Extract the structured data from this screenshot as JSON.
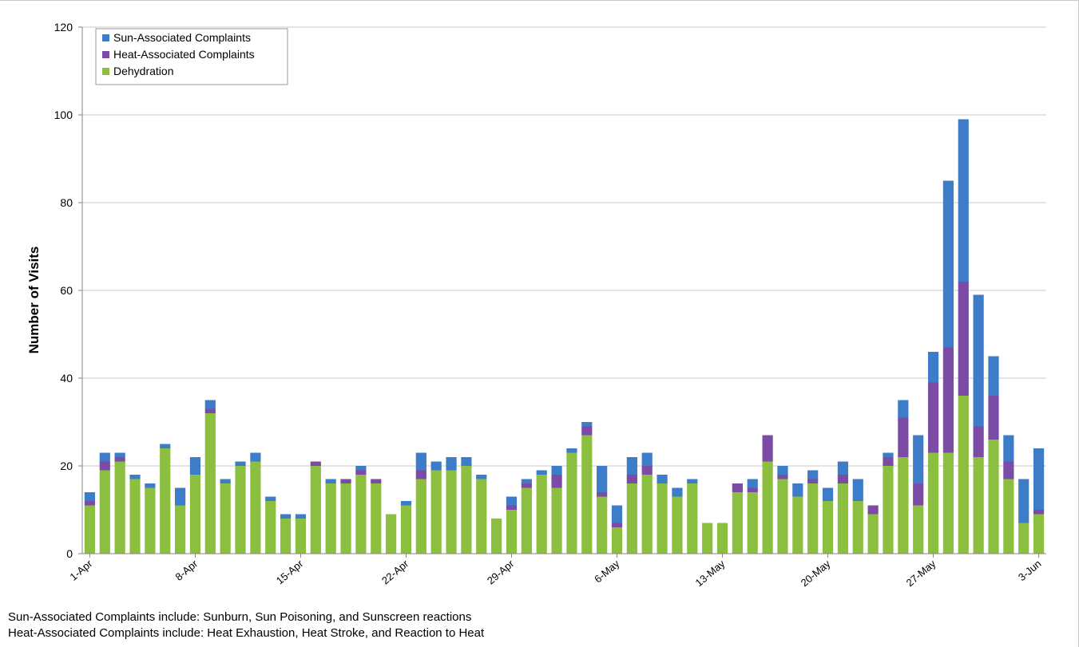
{
  "chart_data": {
    "type": "bar",
    "stacked": true,
    "title": "",
    "xlabel": "",
    "ylabel": "Number of Visits",
    "ylim": [
      0,
      120
    ],
    "yticks": [
      0,
      20,
      40,
      60,
      80,
      100,
      120
    ],
    "xtick_labels": [
      "1-Apr",
      "8-Apr",
      "15-Apr",
      "22-Apr",
      "29-Apr",
      "6-May",
      "13-May",
      "20-May",
      "27-May",
      "3-Jun"
    ],
    "categories": [
      "1-Apr",
      "2-Apr",
      "3-Apr",
      "4-Apr",
      "5-Apr",
      "6-Apr",
      "7-Apr",
      "8-Apr",
      "9-Apr",
      "10-Apr",
      "11-Apr",
      "12-Apr",
      "13-Apr",
      "14-Apr",
      "15-Apr",
      "16-Apr",
      "17-Apr",
      "18-Apr",
      "19-Apr",
      "20-Apr",
      "21-Apr",
      "22-Apr",
      "23-Apr",
      "24-Apr",
      "25-Apr",
      "26-Apr",
      "27-Apr",
      "28-Apr",
      "29-Apr",
      "30-Apr",
      "1-May",
      "2-May",
      "3-May",
      "4-May",
      "5-May",
      "6-May",
      "7-May",
      "8-May",
      "9-May",
      "10-May",
      "11-May",
      "12-May",
      "13-May",
      "14-May",
      "15-May",
      "16-May",
      "17-May",
      "18-May",
      "19-May",
      "20-May",
      "21-May",
      "22-May",
      "23-May",
      "24-May",
      "25-May",
      "26-May",
      "27-May",
      "28-May",
      "29-May",
      "30-May",
      "31-May",
      "1-Jun",
      "2-Jun",
      "3-Jun"
    ],
    "series": [
      {
        "name": "Dehydration",
        "color": "#8cbf3f",
        "values": [
          11,
          19,
          21,
          17,
          15,
          24,
          11,
          18,
          32,
          16,
          20,
          21,
          12,
          8,
          8,
          20,
          16,
          16,
          18,
          16,
          9,
          11,
          17,
          19,
          19,
          20,
          17,
          8,
          10,
          15,
          18,
          15,
          23,
          27,
          13,
          6,
          16,
          18,
          16,
          13,
          16,
          7,
          7,
          14,
          14,
          21,
          17,
          13,
          16,
          12,
          16,
          12,
          9,
          20,
          22,
          11,
          23,
          23,
          36,
          22,
          26,
          17,
          7,
          9
        ]
      },
      {
        "name": "Heat-Associated Complaints",
        "color": "#7b4ba5",
        "values": [
          1,
          2,
          1,
          0,
          0,
          0,
          0,
          0,
          1,
          0,
          0,
          0,
          0,
          0,
          0,
          1,
          0,
          1,
          1,
          1,
          0,
          0,
          2,
          0,
          0,
          0,
          0,
          0,
          1,
          1,
          0,
          3,
          0,
          2,
          1,
          1,
          2,
          2,
          0,
          0,
          0,
          0,
          0,
          2,
          1,
          6,
          1,
          0,
          1,
          0,
          2,
          0,
          2,
          2,
          9,
          5,
          16,
          24,
          26,
          7,
          10,
          4,
          0,
          1
        ]
      },
      {
        "name": "Sun-Associated Complaints",
        "color": "#3d7cc9",
        "values": [
          2,
          2,
          1,
          1,
          1,
          1,
          4,
          4,
          2,
          1,
          1,
          2,
          1,
          1,
          1,
          0,
          1,
          0,
          1,
          0,
          0,
          1,
          4,
          2,
          3,
          2,
          1,
          0,
          2,
          1,
          1,
          2,
          1,
          1,
          6,
          4,
          4,
          3,
          2,
          2,
          1,
          0,
          0,
          0,
          2,
          0,
          2,
          3,
          2,
          3,
          3,
          5,
          0,
          1,
          4,
          11,
          7,
          38,
          37,
          30,
          9,
          6,
          10,
          14
        ]
      }
    ],
    "legend": {
      "position": "top-left",
      "entries": [
        "Sun-Associated Complaints",
        "Heat-Associated Complaints",
        "Dehydration"
      ]
    },
    "grid": true
  },
  "footnotes": {
    "line1": "Sun-Associated Complaints include: Sunburn, Sun Poisoning, and Sunscreen reactions",
    "line2": "Heat-Associated Complaints include: Heat Exhaustion, Heat Stroke, and Reaction to Heat"
  }
}
